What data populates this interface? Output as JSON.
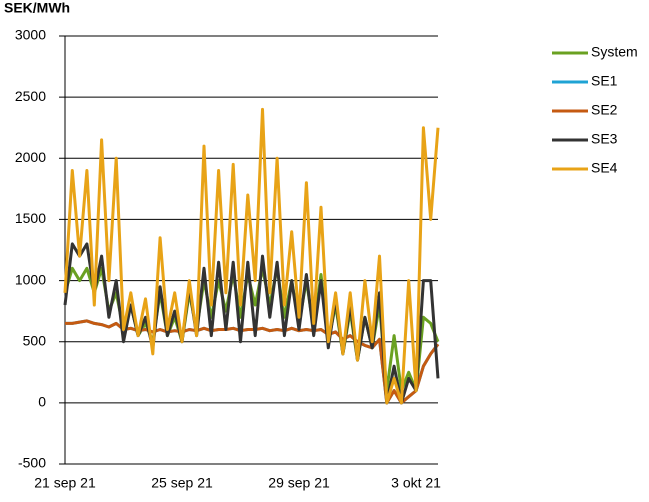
{
  "chart_data": {
    "type": "line",
    "y_label": "SEK/MWh",
    "categories": [
      "21 sep 21",
      null,
      null,
      null,
      null,
      null,
      null,
      null,
      null,
      null,
      null,
      null,
      null,
      null,
      null,
      null,
      "25 sep 21",
      null,
      null,
      null,
      null,
      null,
      null,
      null,
      null,
      null,
      null,
      null,
      null,
      null,
      null,
      null,
      "29 sep 21",
      null,
      null,
      null,
      null,
      null,
      null,
      null,
      null,
      null,
      null,
      null,
      null,
      null,
      null,
      null,
      "3 okt 21",
      null,
      null,
      null
    ],
    "series": [
      {
        "name": "System",
        "color": "#6aa121",
        "values": [
          900,
          1100,
          1000,
          1100,
          900,
          1100,
          750,
          900,
          600,
          800,
          550,
          650,
          500,
          900,
          550,
          700,
          500,
          900,
          600,
          1000,
          700,
          1000,
          750,
          1050,
          700,
          1050,
          800,
          1100,
          800,
          1100,
          700,
          1000,
          650,
          1000,
          600,
          1050,
          500,
          800,
          400,
          750,
          350,
          700,
          450,
          800,
          100,
          550,
          100,
          250,
          100,
          700,
          650,
          500
        ]
      },
      {
        "name": "SE1",
        "color": "#1fa3d4",
        "values": [
          650,
          650,
          660,
          670,
          650,
          640,
          620,
          650,
          600,
          610,
          590,
          600,
          580,
          600,
          580,
          590,
          580,
          600,
          590,
          610,
          590,
          600,
          600,
          610,
          590,
          600,
          600,
          610,
          590,
          600,
          590,
          610,
          590,
          600,
          590,
          600,
          560,
          580,
          520,
          550,
          500,
          470,
          450,
          520,
          0,
          100,
          0,
          50,
          100,
          300,
          400,
          480
        ]
      },
      {
        "name": "SE2",
        "color": "#c55a11",
        "values": [
          650,
          650,
          660,
          670,
          650,
          640,
          620,
          650,
          600,
          610,
          590,
          600,
          580,
          600,
          580,
          590,
          580,
          600,
          590,
          610,
          590,
          600,
          600,
          610,
          590,
          600,
          600,
          610,
          590,
          600,
          590,
          610,
          590,
          600,
          590,
          600,
          560,
          580,
          520,
          550,
          500,
          470,
          450,
          520,
          0,
          100,
          0,
          50,
          100,
          300,
          400,
          480
        ]
      },
      {
        "name": "SE3",
        "color": "#333333",
        "values": [
          800,
          1300,
          1200,
          1300,
          900,
          1200,
          700,
          1000,
          500,
          800,
          550,
          700,
          450,
          950,
          550,
          750,
          500,
          950,
          550,
          1100,
          550,
          1150,
          600,
          1150,
          500,
          1150,
          550,
          1200,
          700,
          1150,
          550,
          1000,
          600,
          1050,
          550,
          1000,
          450,
          850,
          400,
          800,
          350,
          700,
          450,
          900,
          0,
          300,
          0,
          200,
          100,
          1000,
          1000,
          200
        ]
      },
      {
        "name": "SE4",
        "color": "#e8a317",
        "values": [
          900,
          1900,
          1200,
          1900,
          800,
          2150,
          1000,
          2000,
          600,
          900,
          550,
          850,
          400,
          1350,
          600,
          900,
          500,
          1000,
          550,
          2100,
          800,
          1900,
          900,
          1950,
          800,
          1700,
          1000,
          2400,
          900,
          2000,
          800,
          1400,
          700,
          1800,
          650,
          1600,
          500,
          900,
          400,
          900,
          350,
          1000,
          500,
          1200,
          0,
          200,
          0,
          1000,
          100,
          2250,
          1500,
          2250
        ]
      }
    ],
    "ylim": [
      -500,
      3000
    ],
    "yticks": [
      -500,
      0,
      500,
      1000,
      1500,
      2000,
      2500,
      3000
    ],
    "grid": true
  }
}
